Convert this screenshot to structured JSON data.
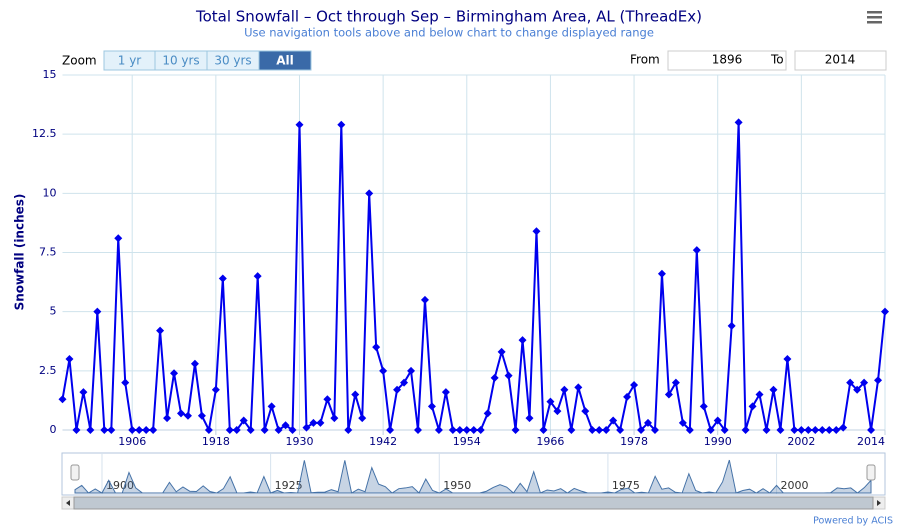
{
  "chart_data": {
    "type": "line",
    "title": "Total Snowfall – Oct through Sep – Birmingham Area, AL (ThreadEx)",
    "subtitle": "Use navigation tools above and below chart to change displayed range",
    "y_label": "Snowfall (inches)",
    "zoom_label": "Zoom",
    "zoom_buttons": [
      "1 yr",
      "10 yrs",
      "30 yrs",
      "All"
    ],
    "from_label": "From",
    "from_value": "1896",
    "to_label": "To",
    "to_value": "2014",
    "credit": "Powered by ACIS",
    "x": [
      1896,
      1897,
      1898,
      1899,
      1900,
      1901,
      1902,
      1903,
      1904,
      1905,
      1906,
      1907,
      1908,
      1909,
      1910,
      1911,
      1912,
      1913,
      1914,
      1915,
      1916,
      1917,
      1918,
      1919,
      1920,
      1921,
      1922,
      1923,
      1924,
      1925,
      1926,
      1927,
      1928,
      1929,
      1930,
      1931,
      1932,
      1933,
      1934,
      1935,
      1936,
      1937,
      1938,
      1939,
      1940,
      1941,
      1942,
      1943,
      1944,
      1945,
      1946,
      1947,
      1948,
      1949,
      1950,
      1951,
      1952,
      1953,
      1954,
      1955,
      1956,
      1957,
      1958,
      1959,
      1960,
      1961,
      1962,
      1963,
      1964,
      1965,
      1966,
      1967,
      1968,
      1969,
      1970,
      1971,
      1972,
      1973,
      1974,
      1975,
      1976,
      1977,
      1978,
      1979,
      1980,
      1981,
      1982,
      1983,
      1984,
      1985,
      1986,
      1987,
      1988,
      1989,
      1990,
      1991,
      1992,
      1993,
      1994,
      1995,
      1996,
      1997,
      1998,
      1999,
      2000,
      2001,
      2002,
      2003,
      2004,
      2005,
      2006,
      2007,
      2008,
      2009,
      2010,
      2011,
      2012,
      2013,
      2014
    ],
    "series": [
      {
        "name": "Snowfall",
        "color": "#0000ee",
        "values": [
          1.3,
          3.0,
          0,
          1.6,
          0,
          5.0,
          0,
          0,
          8.1,
          2.0,
          0,
          0,
          0,
          0,
          4.2,
          0.5,
          2.4,
          0.7,
          0.6,
          2.8,
          0.6,
          0,
          1.7,
          6.4,
          0,
          0,
          0.4,
          0,
          6.5,
          0,
          1.0,
          0,
          0.2,
          0,
          12.9,
          0.1,
          0.3,
          0.3,
          1.3,
          0.5,
          12.9,
          0,
          1.5,
          0.5,
          10.0,
          3.5,
          2.5,
          0,
          1.7,
          2.0,
          2.5,
          0,
          5.5,
          1.0,
          0,
          1.6,
          0,
          0,
          0,
          0,
          0,
          0.7,
          2.2,
          3.3,
          2.3,
          0,
          3.8,
          0.5,
          8.4,
          0,
          1.2,
          0.8,
          1.7,
          0,
          1.8,
          0.8,
          0,
          0,
          0,
          0.4,
          0,
          1.4,
          1.9,
          0,
          0.3,
          0,
          6.6,
          1.5,
          2.0,
          0.3,
          0,
          7.6,
          1.0,
          0,
          0.4,
          0,
          4.4,
          13.0,
          0,
          1.0,
          1.5,
          0,
          1.7,
          0,
          3.0,
          0,
          0,
          0,
          0,
          0,
          0,
          0,
          0.1,
          2.0,
          1.7,
          2.0,
          0,
          2.1,
          5.0
        ]
      }
    ],
    "xlim": [
      1896,
      2014
    ],
    "xticks": [
      1906,
      1918,
      1930,
      1942,
      1954,
      1966,
      1978,
      1990,
      2002,
      2014
    ],
    "ylim": [
      0,
      15
    ],
    "yticks": [
      0,
      2.5,
      5,
      7.5,
      10,
      12.5,
      15
    ],
    "navigator_ticks": [
      1900,
      1925,
      1950,
      1975,
      2000
    ],
    "grid": true
  }
}
